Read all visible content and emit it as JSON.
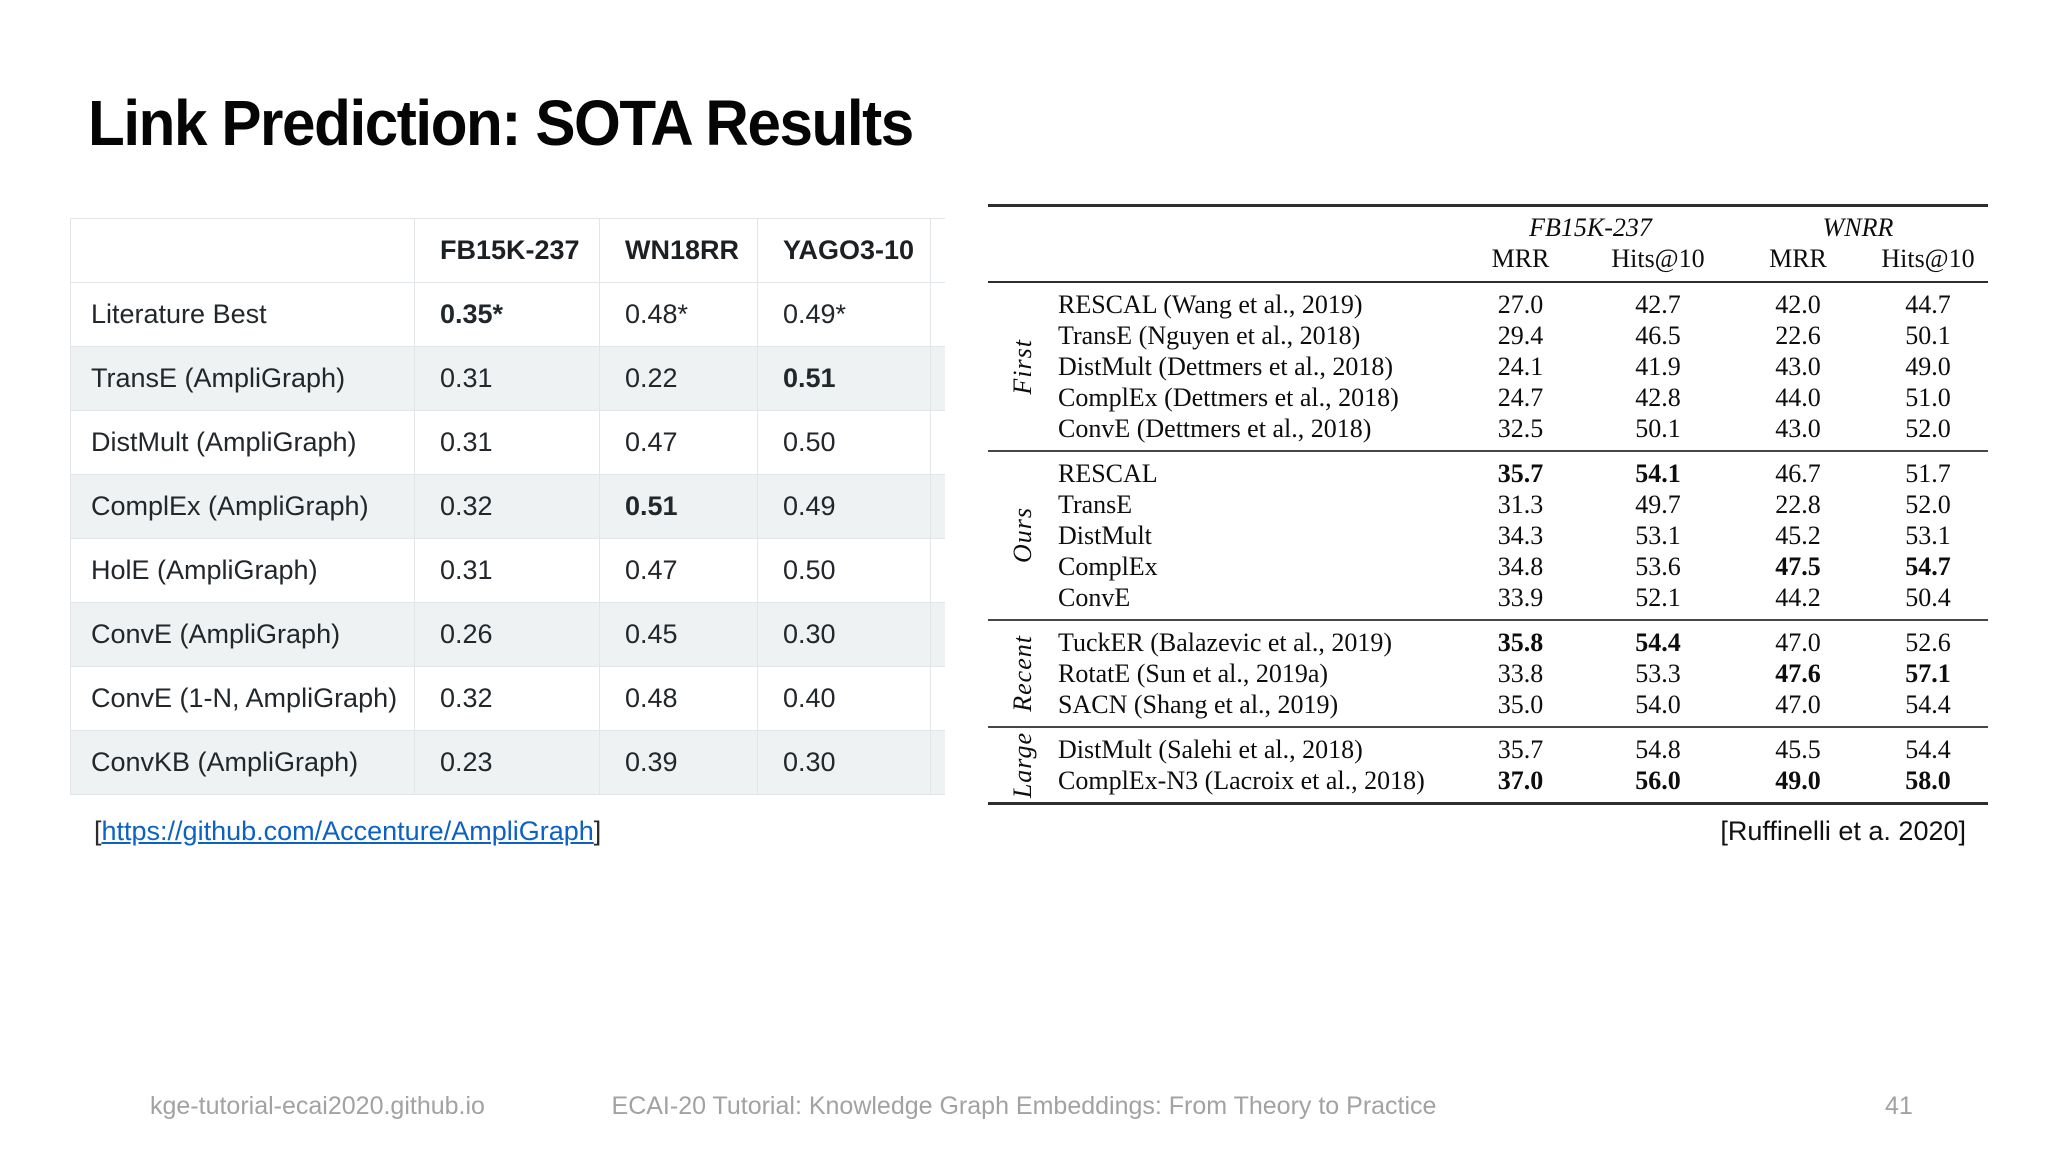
{
  "slide": {
    "title": "Link Prediction: SOTA Results",
    "left_citation": {
      "open": "[",
      "link_text": "https://github.com/Accenture/AmpliGraph",
      "close": "]"
    },
    "right_citation": "[Ruffinelli et a. 2020]",
    "footer": {
      "left": "kge-tutorial-ecai2020.github.io",
      "center": "ECAI-20 Tutorial: Knowledge Graph Embeddings: From Theory to Practice",
      "page": "41"
    }
  },
  "colors": {
    "stripe": "#eef2f2",
    "table_border": "#e3e6e8",
    "link_blue": "#0b62c4",
    "footer_gray": "#a2a2a2"
  },
  "ampligraph_table": {
    "columns": [
      "",
      "FB15K-237",
      "WN18RR",
      "YAGO3-10"
    ],
    "rows": [
      {
        "label": "Literature Best",
        "values": [
          "0.35*",
          "0.48*",
          "0.49*"
        ],
        "bold": [
          true,
          false,
          false
        ],
        "striped": false
      },
      {
        "label": "TransE (AmpliGraph)",
        "values": [
          "0.31",
          "0.22",
          "0.51"
        ],
        "bold": [
          false,
          false,
          true
        ],
        "striped": true
      },
      {
        "label": "DistMult (AmpliGraph)",
        "values": [
          "0.31",
          "0.47",
          "0.50"
        ],
        "bold": [
          false,
          false,
          false
        ],
        "striped": false
      },
      {
        "label": "ComplEx (AmpliGraph)",
        "values": [
          "0.32",
          "0.51",
          "0.49"
        ],
        "bold": [
          false,
          true,
          false
        ],
        "striped": true
      },
      {
        "label": "HolE (AmpliGraph)",
        "values": [
          "0.31",
          "0.47",
          "0.50"
        ],
        "bold": [
          false,
          false,
          false
        ],
        "striped": false
      },
      {
        "label": "ConvE (AmpliGraph)",
        "values": [
          "0.26",
          "0.45",
          "0.30"
        ],
        "bold": [
          false,
          false,
          false
        ],
        "striped": true
      },
      {
        "label": "ConvE (1-N, AmpliGraph)",
        "values": [
          "0.32",
          "0.48",
          "0.40"
        ],
        "bold": [
          false,
          false,
          false
        ],
        "striped": false
      },
      {
        "label": "ConvKB (AmpliGraph)",
        "values": [
          "0.23",
          "0.39",
          "0.30"
        ],
        "bold": [
          false,
          false,
          false
        ],
        "striped": true
      }
    ]
  },
  "paper_table": {
    "dataset_headers": [
      "FB15K-237",
      "WNRR"
    ],
    "metric_headers": [
      "MRR",
      "Hits@10",
      "MRR",
      "Hits@10"
    ],
    "groups": [
      {
        "label": "First",
        "rows": [
          {
            "model": "RESCAL (Wang et al., 2019)",
            "values": [
              "27.0",
              "42.7",
              "42.0",
              "44.7"
            ],
            "bold": [
              false,
              false,
              false,
              false
            ]
          },
          {
            "model": "TransE (Nguyen et al., 2018)",
            "values": [
              "29.4",
              "46.5",
              "22.6",
              "50.1"
            ],
            "bold": [
              false,
              false,
              false,
              false
            ]
          },
          {
            "model": "DistMult (Dettmers et al., 2018)",
            "values": [
              "24.1",
              "41.9",
              "43.0",
              "49.0"
            ],
            "bold": [
              false,
              false,
              false,
              false
            ]
          },
          {
            "model": "ComplEx (Dettmers et al., 2018)",
            "values": [
              "24.7",
              "42.8",
              "44.0",
              "51.0"
            ],
            "bold": [
              false,
              false,
              false,
              false
            ]
          },
          {
            "model": "ConvE (Dettmers et al., 2018)",
            "values": [
              "32.5",
              "50.1",
              "43.0",
              "52.0"
            ],
            "bold": [
              false,
              false,
              false,
              false
            ]
          }
        ]
      },
      {
        "label": "Ours",
        "rows": [
          {
            "model": "RESCAL",
            "values": [
              "35.7",
              "54.1",
              "46.7",
              "51.7"
            ],
            "bold": [
              true,
              true,
              false,
              false
            ]
          },
          {
            "model": "TransE",
            "values": [
              "31.3",
              "49.7",
              "22.8",
              "52.0"
            ],
            "bold": [
              false,
              false,
              false,
              false
            ]
          },
          {
            "model": "DistMult",
            "values": [
              "34.3",
              "53.1",
              "45.2",
              "53.1"
            ],
            "bold": [
              false,
              false,
              false,
              false
            ]
          },
          {
            "model": "ComplEx",
            "values": [
              "34.8",
              "53.6",
              "47.5",
              "54.7"
            ],
            "bold": [
              false,
              false,
              true,
              true
            ]
          },
          {
            "model": "ConvE",
            "values": [
              "33.9",
              "52.1",
              "44.2",
              "50.4"
            ],
            "bold": [
              false,
              false,
              false,
              false
            ]
          }
        ]
      },
      {
        "label": "Recent",
        "rows": [
          {
            "model": "TuckER (Balazevic et al., 2019)",
            "values": [
              "35.8",
              "54.4",
              "47.0",
              "52.6"
            ],
            "bold": [
              true,
              true,
              false,
              false
            ]
          },
          {
            "model": "RotatE (Sun et al., 2019a)",
            "values": [
              "33.8",
              "53.3",
              "47.6",
              "57.1"
            ],
            "bold": [
              false,
              false,
              true,
              true
            ]
          },
          {
            "model": "SACN (Shang et al., 2019)",
            "values": [
              "35.0",
              "54.0",
              "47.0",
              "54.4"
            ],
            "bold": [
              false,
              false,
              false,
              false
            ]
          }
        ]
      },
      {
        "label": "Large",
        "rows": [
          {
            "model": "DistMult (Salehi et al., 2018)",
            "values": [
              "35.7",
              "54.8",
              "45.5",
              "54.4"
            ],
            "bold": [
              false,
              false,
              false,
              false
            ]
          },
          {
            "model": "ComplEx-N3 (Lacroix et al., 2018)",
            "values": [
              "37.0",
              "56.0",
              "49.0",
              "58.0"
            ],
            "bold": [
              true,
              true,
              true,
              true
            ]
          }
        ]
      }
    ]
  }
}
